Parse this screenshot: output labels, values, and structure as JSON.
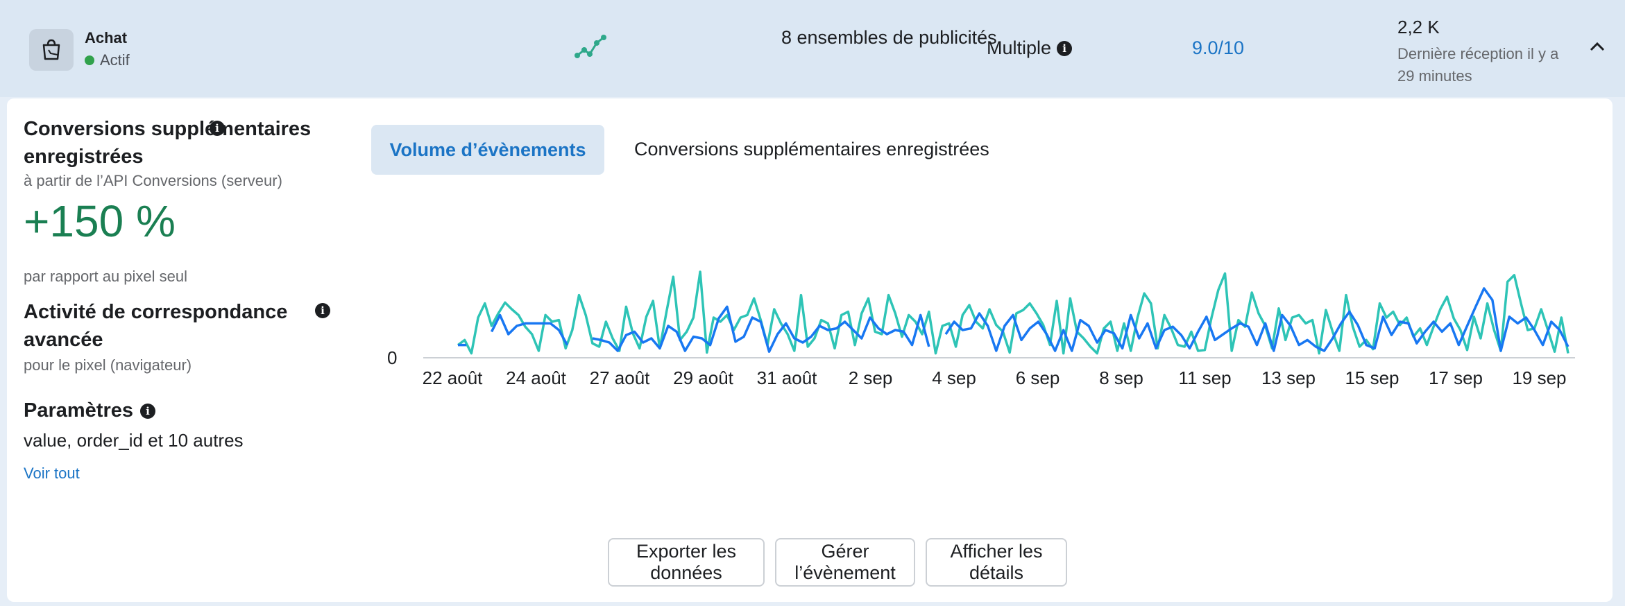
{
  "event": {
    "name": "Achat",
    "status": "Actif",
    "ad_sets": "8 ensembles de publicités",
    "attribution": "Multiple",
    "quality_score": "9.0/10",
    "count": "2,2 K",
    "last_received": "Dernière réception il y a 29 minutes",
    "status_color": "#31a24c",
    "icons": [
      "shopping-bag-icon",
      "trend-line-icon",
      "info-icon",
      "chevron-up-icon"
    ]
  },
  "left": {
    "conversions_title": "Conversions supplémentaires enregistrées",
    "conversions_sub": "à partir de l’API Conversions (serveur)",
    "percent": "+150 %",
    "percent_sub": "par rapport au pixel seul",
    "advanced_title": "Activité de correspondance avancée",
    "advanced_sub": "pour le pixel (navigateur)",
    "params_title": "Paramètres",
    "params_value": "value, order_id et 10 autres",
    "see_all": "Voir tout"
  },
  "tabs": [
    "Volume d’évènements",
    "Conversions supplémentaires enregistrées"
  ],
  "buttons": {
    "export": "Exporter les données",
    "manage": "Gérer l’évènement",
    "details": "Afficher les détails"
  },
  "chart_data": {
    "type": "line",
    "y_tick": "0",
    "x_ticks": [
      "22 août",
      "24 août",
      "27 août",
      "29 août",
      "31 août",
      "2 sep",
      "4 sep",
      "6 sep",
      "8 sep",
      "11 sep",
      "13 sep",
      "15 sep",
      "17 sep",
      "19 sep"
    ],
    "colors": {
      "light": "#2ec4b6",
      "dark": "#1877f2"
    },
    "series": [
      {
        "values": [
          12,
          18,
          2,
          45,
          62,
          35,
          50,
          63,
          55,
          48,
          34,
          25,
          5,
          48,
          40,
          42,
          8,
          30,
          72,
          48,
          14,
          10,
          40,
          20,
          5,
          58,
          26,
          8,
          46,
          65,
          8,
          52,
          94,
          18,
          28,
          45,
          100,
          3,
          45,
          40,
          48,
          30,
          45,
          48,
          68,
          42,
          12,
          55,
          38,
          25,
          5,
          72,
          10,
          20,
          42,
          38,
          8,
          48,
          52,
          12,
          50,
          68,
          28,
          25,
          72,
          50,
          22,
          48,
          40,
          25,
          52,
          2,
          35,
          38,
          10,
          48,
          60,
          40,
          32,
          55,
          36,
          28,
          3,
          50,
          54,
          62,
          50,
          36,
          12,
          65,
          2,
          68,
          28,
          20,
          10,
          2,
          32,
          40,
          5,
          38,
          5,
          45,
          74,
          62,
          8,
          48,
          32,
          12,
          10,
          28,
          5,
          6,
          45,
          78,
          98,
          5,
          42,
          34,
          75,
          50,
          35,
          8,
          56,
          18,
          45,
          48,
          38,
          42,
          2,
          54,
          28,
          5,
          72,
          34,
          10,
          18,
          7,
          62,
          45,
          52,
          36,
          45,
          22,
          32,
          12,
          34,
          55,
          70,
          44,
          30,
          6,
          46,
          20,
          62,
          30,
          5,
          88,
          96,
          62,
          30,
          32,
          55,
          30,
          4,
          45,
          2
        ],
        "gaps": []
      },
      {
        "values": [
          12,
          12,
          null,
          null,
          28,
          48,
          25,
          35,
          38,
          38,
          38,
          38,
          30,
          12,
          null,
          null,
          20,
          18,
          15,
          5,
          24,
          28,
          15,
          20,
          8,
          35,
          28,
          5,
          22,
          20,
          12,
          44,
          58,
          16,
          22,
          45,
          40,
          4,
          25,
          38,
          20,
          15,
          22,
          35,
          30,
          32,
          40,
          30,
          20,
          45,
          32,
          25,
          30,
          28,
          12,
          48,
          10,
          null,
          25,
          40,
          30,
          32,
          50,
          35,
          5,
          35,
          48,
          18,
          32,
          40,
          25,
          5,
          30,
          5,
          42,
          35,
          15,
          30,
          26,
          8,
          48,
          20,
          38,
          8,
          30,
          34,
          24,
          8,
          28,
          46,
          18,
          25,
          32,
          38,
          34,
          12,
          38,
          5,
          48,
          35,
          12,
          18,
          10,
          5,
          20,
          38,
          52,
          36,
          12,
          8,
          46,
          24,
          40,
          38,
          14,
          28,
          40,
          28,
          38,
          12,
          35,
          58,
          80,
          66,
          5,
          46,
          38,
          45,
          30,
          12,
          40,
          30,
          10
        ]
      }
    ]
  }
}
